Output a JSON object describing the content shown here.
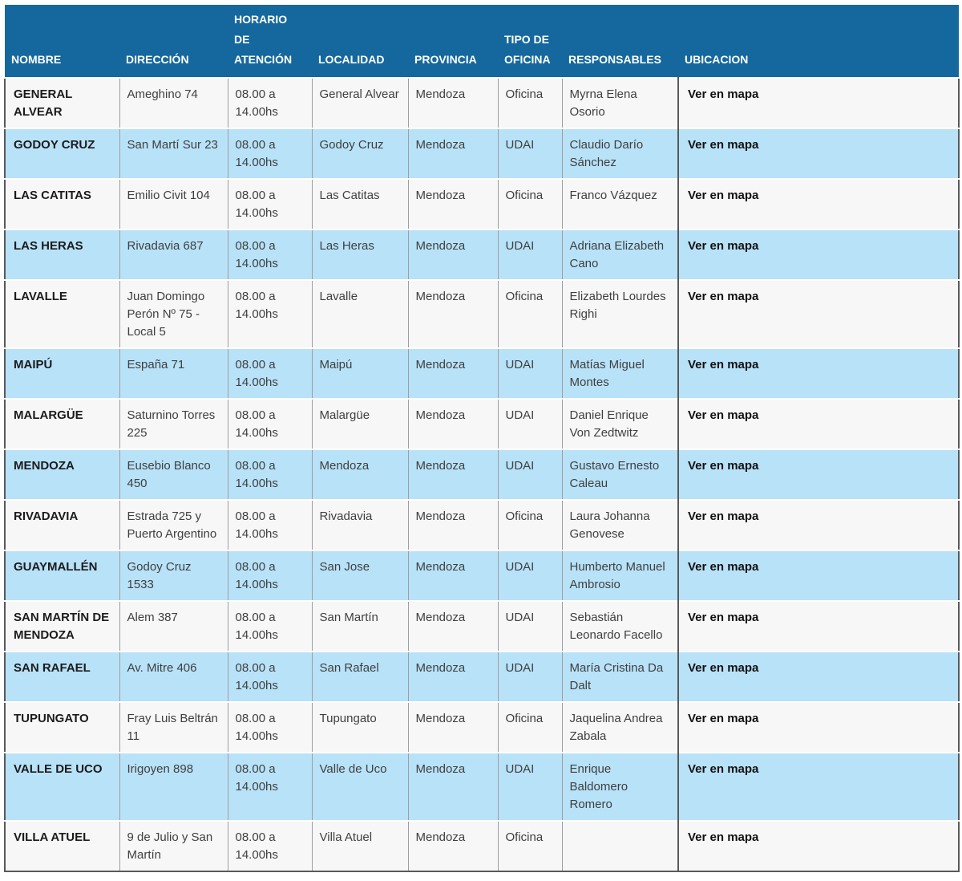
{
  "table": {
    "columns": [
      "NOMBRE",
      "DIRECCIÓN",
      "HORARIO DE ATENCIÓN",
      "LOCALIDAD",
      "PROVINCIA",
      "TIPO DE OFICINA",
      "RESPONSABLES",
      "UBICACION"
    ],
    "rows": [
      {
        "nombre": "GENERAL ALVEAR",
        "direccion": "Ameghino 74",
        "horario": "08.00 a 14.00hs",
        "localidad": "General Alvear",
        "provincia": "Mendoza",
        "tipo_oficina": "Oficina",
        "responsables": "Myrna Elena Osorio",
        "ubicacion": "Ver en mapa"
      },
      {
        "nombre": "GODOY CRUZ",
        "direccion": "San Martí Sur 23",
        "horario": "08.00 a 14.00hs",
        "localidad": "Godoy Cruz",
        "provincia": "Mendoza",
        "tipo_oficina": "UDAI",
        "responsables": "Claudio Darío Sánchez",
        "ubicacion": "Ver en mapa"
      },
      {
        "nombre": "LAS CATITAS",
        "direccion": "Emilio Civit 104",
        "horario": "08.00 a 14.00hs",
        "localidad": "Las Catitas",
        "provincia": "Mendoza",
        "tipo_oficina": "Oficina",
        "responsables": "Franco Vázquez",
        "ubicacion": "Ver en mapa"
      },
      {
        "nombre": "LAS HERAS",
        "direccion": "Rivadavia 687",
        "horario": "08.00 a 14.00hs",
        "localidad": "Las Heras",
        "provincia": "Mendoza",
        "tipo_oficina": "UDAI",
        "responsables": "Adriana Elizabeth Cano",
        "ubicacion": "Ver en mapa"
      },
      {
        "nombre": "LAVALLE",
        "direccion": "Juan Domingo Perón Nº 75 - Local 5",
        "horario": "08.00 a 14.00hs",
        "localidad": "Lavalle",
        "provincia": "Mendoza",
        "tipo_oficina": "Oficina",
        "responsables": "Elizabeth Lourdes Righi",
        "ubicacion": "Ver en mapa"
      },
      {
        "nombre": "MAIPÚ",
        "direccion": "España 71",
        "horario": "08.00 a 14.00hs",
        "localidad": "Maipú",
        "provincia": "Mendoza",
        "tipo_oficina": "UDAI",
        "responsables": "Matías Miguel Montes",
        "ubicacion": "Ver en mapa"
      },
      {
        "nombre": "MALARGÜE",
        "direccion": "Saturnino Torres 225",
        "horario": "08.00 a 14.00hs",
        "localidad": "Malargüe",
        "provincia": "Mendoza",
        "tipo_oficina": "UDAI",
        "responsables": "Daniel Enrique Von Zedtwitz",
        "ubicacion": "Ver en mapa"
      },
      {
        "nombre": "MENDOZA",
        "direccion": "Eusebio Blanco 450",
        "horario": "08.00 a 14.00hs",
        "localidad": "Mendoza",
        "provincia": "Mendoza",
        "tipo_oficina": "UDAI",
        "responsables": "Gustavo Ernesto Caleau",
        "ubicacion": "Ver en mapa"
      },
      {
        "nombre": "RIVADAVIA",
        "direccion": "Estrada 725 y Puerto Argentino",
        "horario": "08.00 a 14.00hs",
        "localidad": "Rivadavia",
        "provincia": "Mendoza",
        "tipo_oficina": "Oficina",
        "responsables": "Laura Johanna Genovese",
        "ubicacion": "Ver en mapa"
      },
      {
        "nombre": "GUAYMALLÉN",
        "direccion": "Godoy Cruz 1533",
        "horario": "08.00 a 14.00hs",
        "localidad": "San Jose",
        "provincia": "Mendoza",
        "tipo_oficina": "UDAI",
        "responsables": "Humberto Manuel Ambrosio",
        "ubicacion": "Ver en mapa"
      },
      {
        "nombre": "SAN MARTÍN DE MENDOZA",
        "direccion": "Alem 387",
        "horario": "08.00 a 14.00hs",
        "localidad": "San Martín",
        "provincia": "Mendoza",
        "tipo_oficina": "UDAI",
        "responsables": "Sebastián Leonardo Facello",
        "ubicacion": "Ver en mapa"
      },
      {
        "nombre": "SAN RAFAEL",
        "direccion": "Av. Mitre 406",
        "horario": "08.00 a 14.00hs",
        "localidad": "San Rafael",
        "provincia": "Mendoza",
        "tipo_oficina": "UDAI",
        "responsables": "María Cristina Da Dalt",
        "ubicacion": "Ver en mapa"
      },
      {
        "nombre": "TUPUNGATO",
        "direccion": "Fray Luis Beltrán 11",
        "horario": "08.00 a 14.00hs",
        "localidad": "Tupungato",
        "provincia": "Mendoza",
        "tipo_oficina": "Oficina",
        "responsables": "Jaquelina Andrea Zabala",
        "ubicacion": "Ver en mapa"
      },
      {
        "nombre": "VALLE DE UCO",
        "direccion": "Irigoyen 898",
        "horario": "08.00 a 14.00hs",
        "localidad": "Valle de Uco",
        "provincia": "Mendoza",
        "tipo_oficina": "UDAI",
        "responsables": "Enrique Baldomero Romero",
        "ubicacion": "Ver en mapa"
      },
      {
        "nombre": "VILLA ATUEL",
        "direccion": "9 de Julio y San Martín",
        "horario": "08.00 a 14.00hs",
        "localidad": "Villa Atuel",
        "provincia": "Mendoza",
        "tipo_oficina": "Oficina",
        "responsables": "",
        "ubicacion": "Ver en mapa"
      }
    ],
    "colors": {
      "header_bg": "#15689e",
      "header_text": "#ffffff",
      "row_bg": "#f7f7f7",
      "row_alt_bg": "#b8e2f8",
      "cell_text": "#3f3f3f",
      "nombre_text": "#1b1b1b",
      "link_text": "#111111"
    }
  }
}
